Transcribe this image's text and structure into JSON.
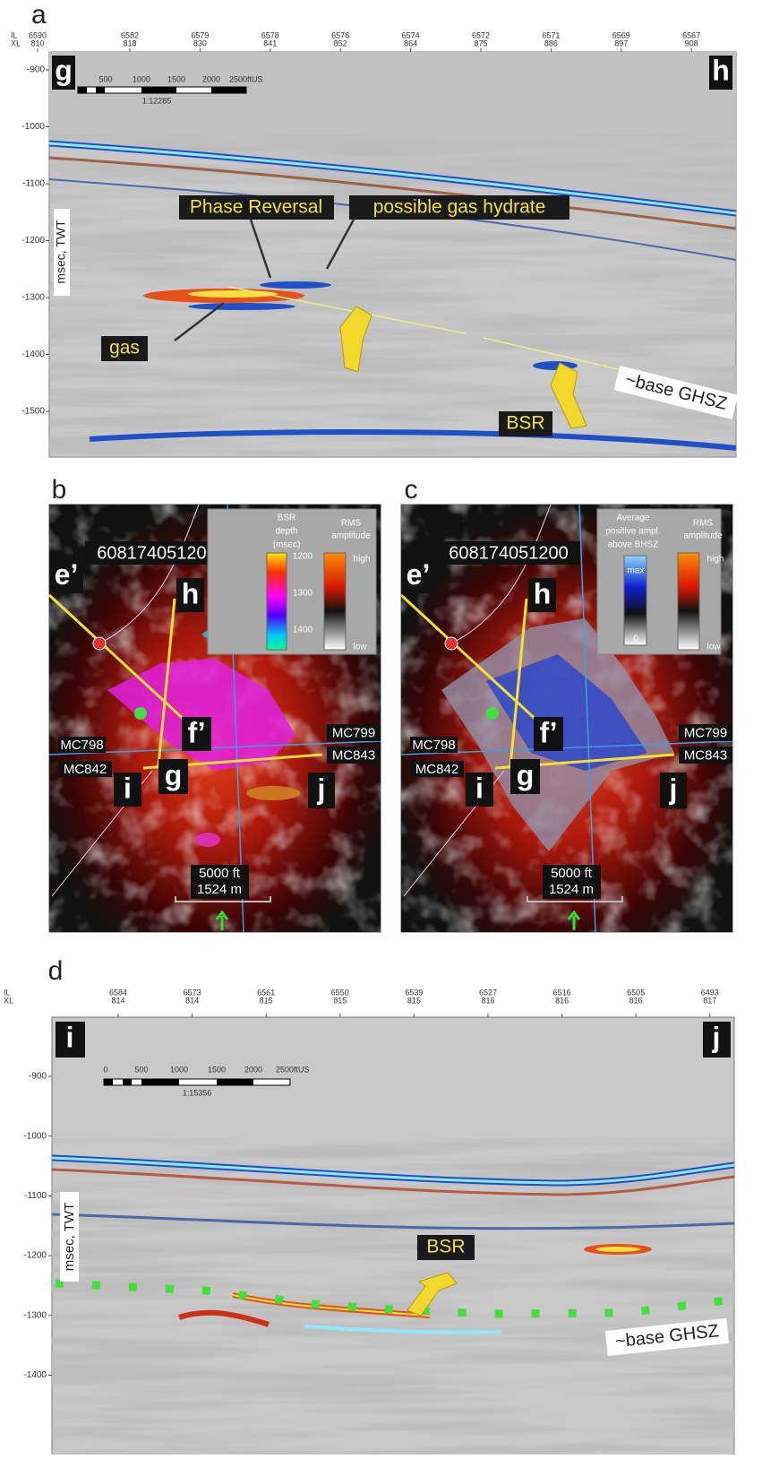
{
  "a": {
    "letter": "a",
    "il_label": "IL",
    "xl_label": "XL",
    "il": [
      6590,
      6582,
      6579,
      6578,
      6576,
      6574,
      6572,
      6571,
      6569,
      6567
    ],
    "xl": [
      810,
      818,
      830,
      841,
      852,
      864,
      875,
      886,
      897,
      908
    ],
    "yticks": [
      -900,
      -1000,
      -1100,
      -1200,
      -1300,
      -1400,
      -1500
    ],
    "axis_label": "msec, TWT",
    "corner_left": "g",
    "corner_right": "h",
    "scale_ticks": [
      "500",
      "1000",
      "1500",
      "2000",
      "2500ftUS"
    ],
    "scale_ratio": "1:12285",
    "annotations": {
      "phase": "Phase Reversal",
      "hydrate": "possible gas hydrate",
      "gas": "gas",
      "bsr": "BSR",
      "base": "~base GHSZ"
    }
  },
  "b": {
    "letter": "b",
    "well": "608174051200",
    "labels": {
      "e": "e’",
      "h": "h",
      "f": "f’",
      "g": "g",
      "i": "i",
      "j": "j"
    },
    "lines": {
      "mc798": "MC798",
      "mc842": "MC842",
      "mc799": "MC799",
      "mc843": "MC843"
    },
    "legend1": {
      "title": [
        "BSR",
        "depth",
        "(msec)"
      ],
      "ticks": [
        1200,
        1300,
        1400
      ]
    },
    "legend2": {
      "title": [
        "RMS",
        "amplitude"
      ],
      "high": "high",
      "low": "low"
    },
    "scale": [
      "5000 ft",
      "1524 m"
    ]
  },
  "c": {
    "letter": "c",
    "well": "608174051200",
    "labels": {
      "e": "e’",
      "h": "h",
      "f": "f’",
      "g": "g",
      "i": "i",
      "j": "j"
    },
    "lines": {
      "mc798": "MC798",
      "mc842": "MC842",
      "mc799": "MC799",
      "mc843": "MC843"
    },
    "legend1": {
      "title": [
        "Average",
        "positive ampl.",
        "above BHSZ"
      ],
      "max": "max",
      "min": "0"
    },
    "legend2": {
      "title": [
        "RMS",
        "amplitude"
      ],
      "high": "high",
      "low": "low"
    },
    "scale": [
      "5000 ft",
      "1524 m"
    ]
  },
  "d": {
    "letter": "d",
    "il_label": "IL",
    "xl_label": "XL",
    "il": [
      6584,
      6573,
      6561,
      6550,
      6539,
      6527,
      6516,
      6505,
      6493
    ],
    "xl": [
      814,
      814,
      815,
      815,
      815,
      816,
      816,
      816,
      817
    ],
    "yticks": [
      -900,
      -1000,
      -1100,
      -1200,
      -1300,
      -1400
    ],
    "axis_label": "msec, TWT",
    "corner_left": "i",
    "corner_right": "j",
    "scale_ticks": [
      "0",
      "500",
      "1000",
      "1500",
      "2000",
      "2500ftUS"
    ],
    "scale_ratio": "1:15356",
    "annotations": {
      "bsr": "BSR",
      "base": "~base GHSZ"
    }
  }
}
